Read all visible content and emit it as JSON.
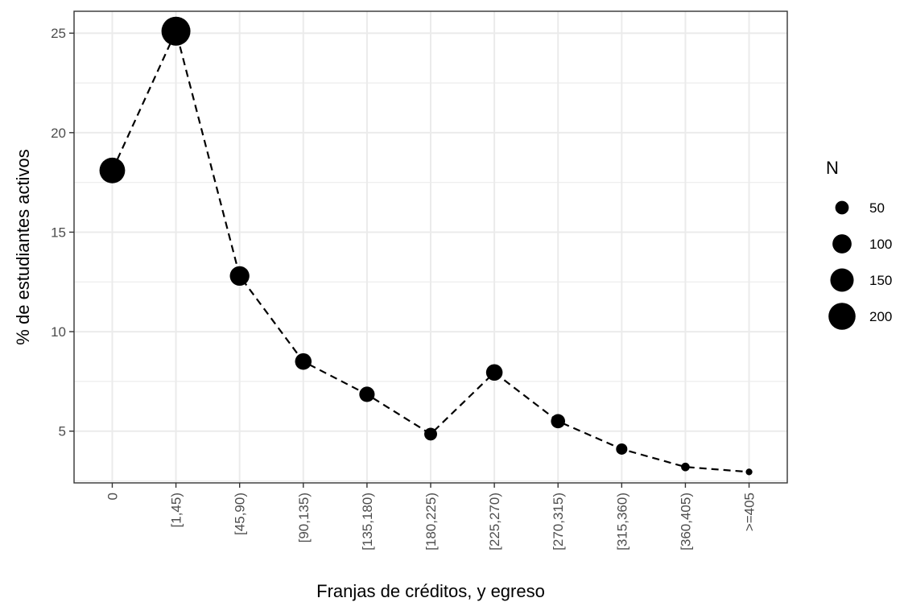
{
  "chart_data": {
    "type": "scatter",
    "title": "",
    "xlabel": "Franjas de créditos, y egreso",
    "ylabel": "% de estudiantes activos",
    "categories": [
      "0",
      "[1,45)",
      "[45,90)",
      "[90,135)",
      "[135,180)",
      "[180,225)",
      "[225,270)",
      "[270,315)",
      "[315,360)",
      "[360,405)",
      ">=405"
    ],
    "series": [
      {
        "values": [
          18.1,
          25.1,
          12.8,
          8.5,
          6.85,
          4.85,
          7.95,
          5.5,
          4.1,
          3.2,
          2.95
        ],
        "sizes": [
          180,
          230,
          105,
          75,
          65,
          45,
          75,
          55,
          35,
          20,
          12
        ]
      }
    ],
    "line_style": "dashed",
    "ylim": [
      2.4,
      26.1
    ],
    "yticks": [
      5,
      10,
      15,
      20,
      25
    ],
    "grid": true,
    "legend": {
      "title": "N",
      "position": "right",
      "entries": [
        {
          "label": "50",
          "size": 50
        },
        {
          "label": "100",
          "size": 100
        },
        {
          "label": "150",
          "size": 150
        },
        {
          "label": "200",
          "size": 200
        }
      ]
    },
    "colors": {
      "points": "#000000",
      "line": "#000000",
      "grid": "#ebebeb",
      "panel_border": "#333333"
    }
  }
}
